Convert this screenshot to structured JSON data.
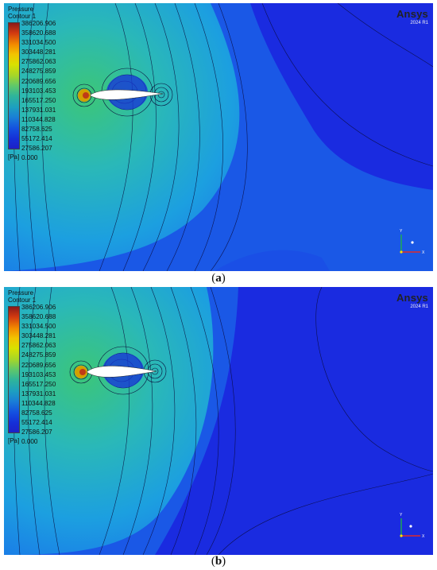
{
  "panels": [
    {
      "legend": {
        "title": "Pressure\nContour 1",
        "ticks": [
          "386206.906",
          "358620.688",
          "331034.500",
          "303448.281",
          "275862.063",
          "248275.859",
          "220689.656",
          "193103.453",
          "165517.250",
          "137931.031",
          "110344.828",
          "82758.625",
          "55172.414",
          "27586.207",
          "0.000"
        ],
        "unit": "[Pa]"
      },
      "brand": {
        "name": "Ansys",
        "version": "2024 R1"
      },
      "caption_letter": "a"
    },
    {
      "legend": {
        "title": "Pressure\nContour 1",
        "ticks": [
          "386206.906",
          "358620.688",
          "331034.500",
          "303448.281",
          "275862.063",
          "248275.859",
          "220689.656",
          "193103.453",
          "165517.250",
          "137931.031",
          "110344.828",
          "82758.625",
          "55172.414",
          "27586.207",
          "0.000"
        ],
        "unit": "[Pa]"
      },
      "brand": {
        "name": "Ansys",
        "version": "2024 R1"
      },
      "caption_letter": "b"
    }
  ],
  "colors": {
    "field_far": "#1a2be0",
    "field_mid": "#1ca6e6",
    "field_near": "#3cc6a0",
    "stagnation": "#c03a16",
    "airfoil": "#ffffff",
    "contour_line": "#0a0a3a"
  },
  "icons": {
    "triad": "xyz-axis-triad-icon"
  }
}
